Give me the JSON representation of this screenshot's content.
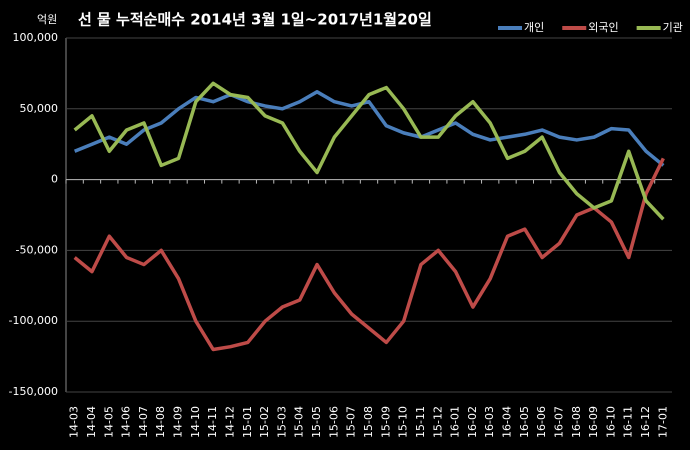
{
  "chart_data": {
    "type": "line",
    "title": "선 물  누적순매수 2014년 3월 1일~2017년1월20일",
    "y_label": "억원",
    "categories": [
      "14-03",
      "14-04",
      "14-05",
      "14-06",
      "14-07",
      "14-08",
      "14-09",
      "14-10",
      "14-11",
      "14-12",
      "15-01",
      "15-02",
      "15-03",
      "15-04",
      "15-05",
      "15-06",
      "15-07",
      "15-08",
      "15-09",
      "15-10",
      "15-11",
      "15-12",
      "16-01",
      "16-02",
      "16-03",
      "16-04",
      "16-05",
      "16-06",
      "16-07",
      "16-08",
      "16-09",
      "16-10",
      "16-11",
      "16-12",
      "17-01"
    ],
    "series": [
      {
        "name": "개인",
        "color": "#4a7ebb",
        "values": [
          20000,
          25000,
          30000,
          25000,
          35000,
          40000,
          50000,
          58000,
          55000,
          60000,
          55000,
          52000,
          50000,
          55000,
          62000,
          55000,
          52000,
          55000,
          38000,
          33000,
          30000,
          35000,
          40000,
          32000,
          28000,
          30000,
          32000,
          35000,
          30000,
          28000,
          30000,
          36000,
          35000,
          20000,
          10000
        ]
      },
      {
        "name": "외국인",
        "color": "#be4b48",
        "values": [
          -55000,
          -65000,
          -40000,
          -55000,
          -60000,
          -50000,
          -70000,
          -100000,
          -120000,
          -118000,
          -115000,
          -100000,
          -90000,
          -85000,
          -60000,
          -80000,
          -95000,
          -105000,
          -115000,
          -100000,
          -60000,
          -50000,
          -65000,
          -90000,
          -70000,
          -40000,
          -35000,
          -55000,
          -45000,
          -25000,
          -20000,
          -30000,
          -55000,
          -10000,
          15000
        ]
      },
      {
        "name": "기관",
        "color": "#98b954",
        "values": [
          35000,
          45000,
          20000,
          35000,
          40000,
          10000,
          15000,
          55000,
          68000,
          60000,
          58000,
          45000,
          40000,
          20000,
          5000,
          30000,
          45000,
          60000,
          65000,
          50000,
          30000,
          30000,
          45000,
          55000,
          40000,
          15000,
          20000,
          30000,
          5000,
          -10000,
          -20000,
          -15000,
          20000,
          -15000,
          -28000
        ]
      }
    ],
    "ylim": [
      -150000,
      100000
    ],
    "yticks": [
      {
        "value": -150000,
        "label": "-150,000"
      },
      {
        "value": -100000,
        "label": "-100,000"
      },
      {
        "value": -50000,
        "label": "-50,000"
      },
      0,
      {
        "value": 50000,
        "label": "50,000"
      },
      {
        "value": 100000,
        "label": "100,000"
      }
    ],
    "grid": true,
    "legend": "top-right"
  }
}
